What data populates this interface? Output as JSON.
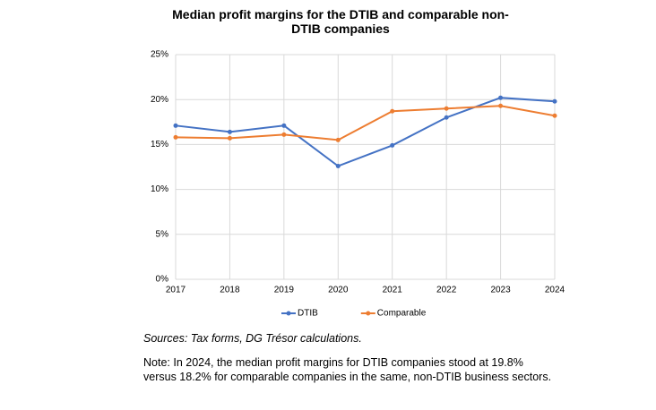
{
  "chart_data": {
    "type": "line",
    "title": "Median profit margins for the DTIB and comparable non-DTIB companies",
    "categories": [
      "2017",
      "2018",
      "2019",
      "2020",
      "2021",
      "2022",
      "2023",
      "2024"
    ],
    "series": [
      {
        "name": "DTIB",
        "color": "#4472c4",
        "values": [
          17.1,
          16.4,
          17.1,
          12.6,
          14.9,
          18.0,
          20.2,
          19.8
        ]
      },
      {
        "name": "Comparable",
        "color": "#ed7d31",
        "values": [
          15.8,
          15.7,
          16.1,
          15.5,
          18.7,
          19.0,
          19.3,
          18.2
        ]
      }
    ],
    "ylim": [
      0,
      25
    ],
    "yticks": [
      {
        "value": 0,
        "label": "0%"
      },
      {
        "value": 5,
        "label": "5%"
      },
      {
        "value": 10,
        "label": "10%"
      },
      {
        "value": 15,
        "label": "15%"
      },
      {
        "value": 20,
        "label": "20%"
      },
      {
        "value": 25,
        "label": "25%"
      }
    ],
    "grid": true,
    "legend": "bottom",
    "sources": "Sources: Tax forms, DG Trésor calculations.",
    "note": "Note: In 2024, the median profit margins for DTIB companies stood at 19.8% versus 18.2% for comparable companies in the same, non-DTIB business sectors."
  }
}
